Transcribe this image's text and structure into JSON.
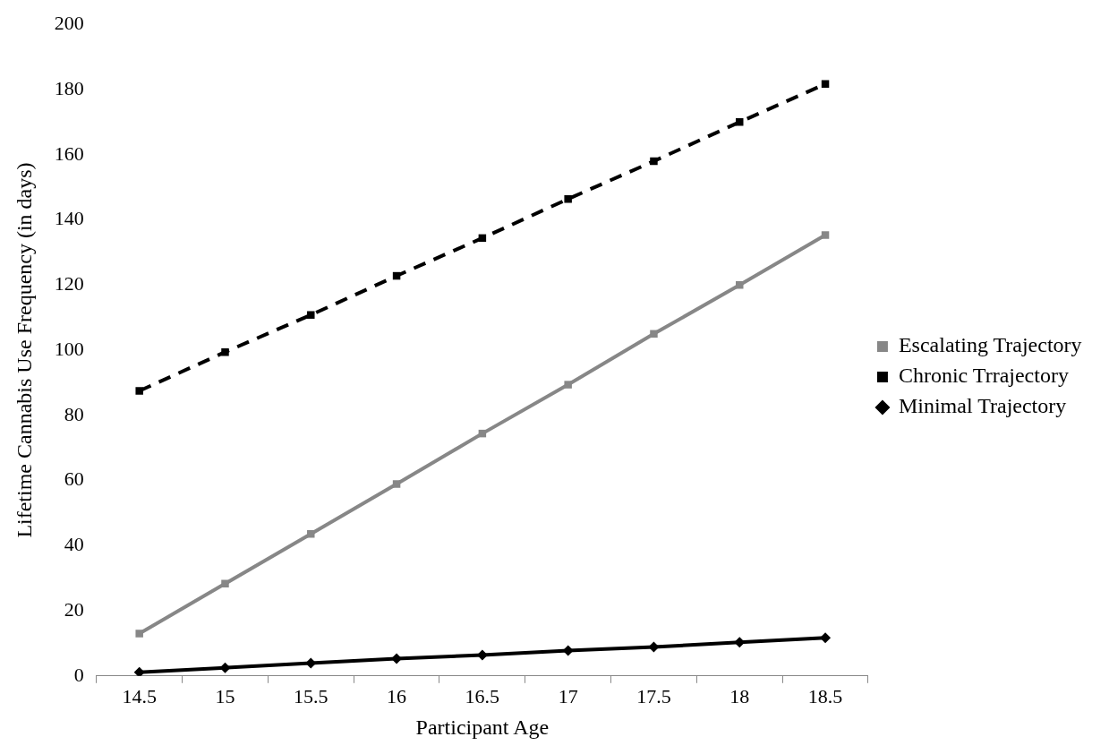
{
  "chart_data": {
    "type": "line",
    "xlabel": "Participant Age",
    "ylabel": "Lifetime Cannabis Use Frequency (in days)",
    "categories": [
      "14.5",
      "15",
      "15.5",
      "16",
      "16.5",
      "17",
      "17.5",
      "18",
      "18.5"
    ],
    "series": [
      {
        "name": "Escalating Trajectory",
        "color": "#878787",
        "marker": "square",
        "line_style": "solid",
        "values": [
          13,
          28.3,
          43.6,
          58.9,
          74.4,
          89.4,
          105,
          120,
          135.3
        ]
      },
      {
        "name": "Chronic Trrajectory",
        "color": "#000000",
        "marker": "square",
        "line_style": "dashed",
        "values": [
          87.5,
          99.4,
          110.8,
          122.8,
          134.4,
          146.4,
          158,
          170,
          181.7
        ]
      },
      {
        "name": "Minimal Trajectory",
        "color": "#000000",
        "marker": "diamond",
        "line_style": "solid",
        "values": [
          1.1,
          2.5,
          3.9,
          5.3,
          6.4,
          7.8,
          8.9,
          10.3,
          11.7
        ]
      }
    ],
    "ylim": [
      0,
      200
    ],
    "yticks": [
      0,
      20,
      40,
      60,
      80,
      100,
      120,
      140,
      160,
      180,
      200
    ],
    "grid": false,
    "legend": "right"
  }
}
